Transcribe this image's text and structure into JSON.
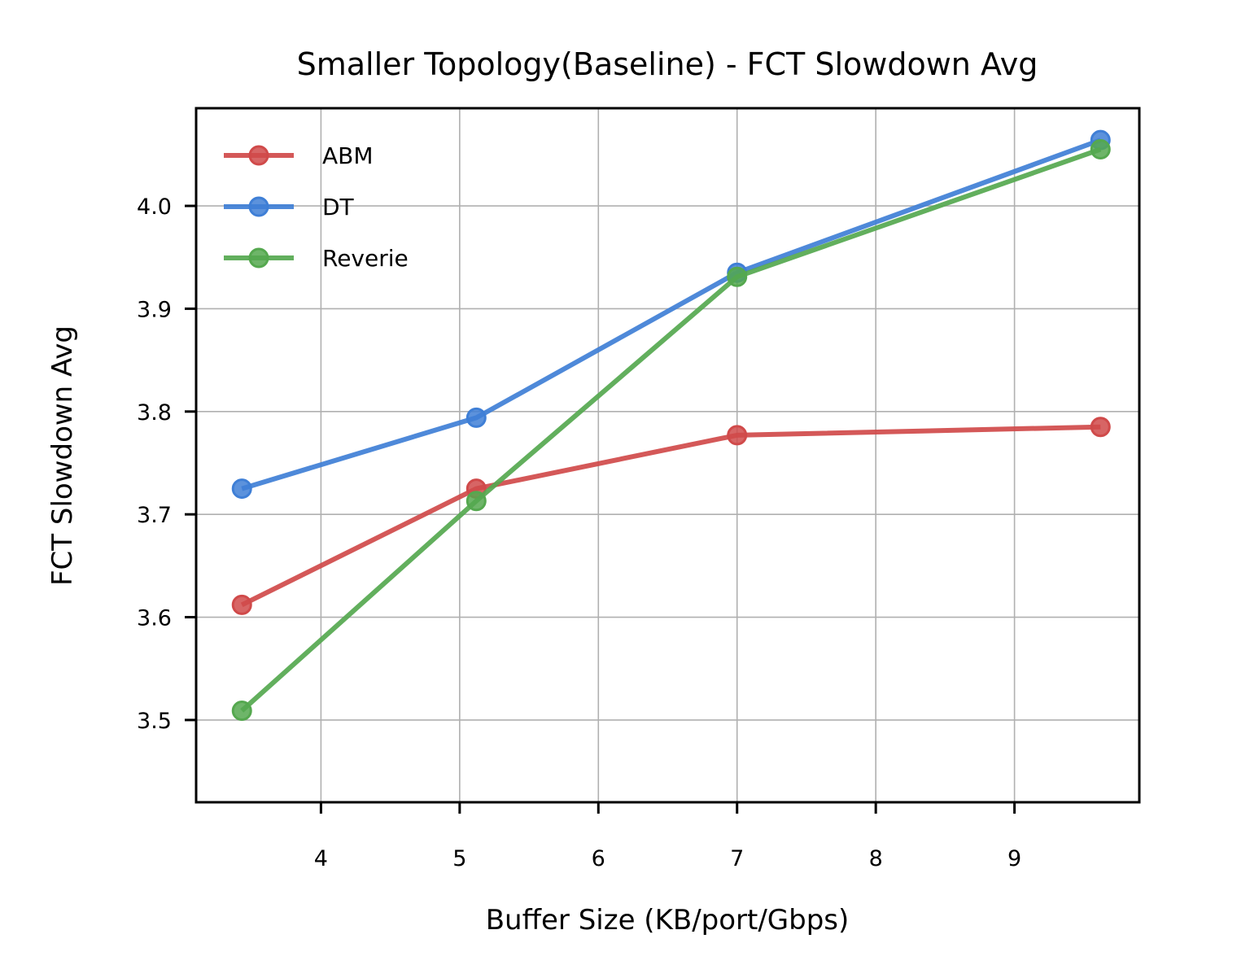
{
  "chart_data": {
    "type": "line",
    "title": "Smaller Topology(Baseline) - FCT Slowdown Avg",
    "xlabel": "Buffer Size (KB/port/Gbps)",
    "ylabel": "FCT Slowdown Avg",
    "xlim": [
      3.1,
      9.9
    ],
    "ylim": [
      3.42,
      4.095
    ],
    "xticks": [
      4,
      5,
      6,
      7,
      8,
      9
    ],
    "yticks": [
      3.5,
      3.6,
      3.7,
      3.8,
      3.9,
      4.0
    ],
    "xtick_labels": [
      "4",
      "5",
      "6",
      "7",
      "8",
      "9"
    ],
    "ytick_labels": [
      "3.5",
      "3.6",
      "3.7",
      "3.8",
      "3.9",
      "4.0"
    ],
    "grid": true,
    "legend_position": "top-left",
    "series": [
      {
        "name": "ABM",
        "color": "#d04a4a",
        "x": [
          3.43,
          5.12,
          7.0,
          9.62
        ],
        "y": [
          3.612,
          3.725,
          3.777,
          3.785
        ]
      },
      {
        "name": "DT",
        "color": "#3f7fd6",
        "x": [
          3.43,
          5.12,
          7.0,
          9.62
        ],
        "y": [
          3.725,
          3.794,
          3.935,
          4.064
        ]
      },
      {
        "name": "Reverie",
        "color": "#55a84f",
        "x": [
          3.43,
          5.12,
          7.0,
          9.62
        ],
        "y": [
          3.509,
          3.713,
          3.931,
          4.055
        ]
      }
    ]
  }
}
